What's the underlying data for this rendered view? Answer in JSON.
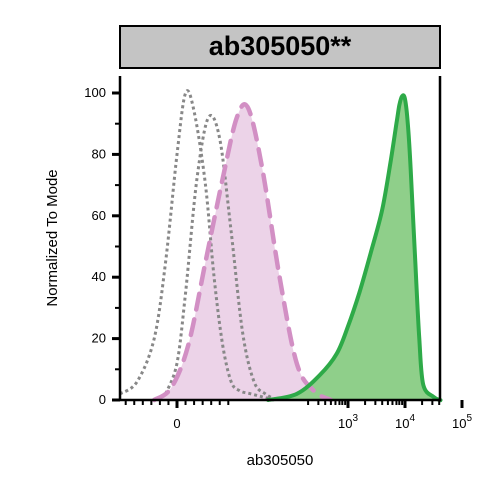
{
  "chart_data": {
    "type": "area",
    "title": "ab305050**",
    "xlabel": "ab305050",
    "ylabel": "Normalized To Mode",
    "ylim": [
      0,
      100
    ],
    "yticks": [
      0,
      20,
      40,
      60,
      80,
      100
    ],
    "xscale": "biexponential",
    "xticks": [
      {
        "label": "0",
        "exp": ""
      },
      {
        "label": "10",
        "exp": "3"
      },
      {
        "label": "10",
        "exp": "4"
      },
      {
        "label": "10",
        "exp": "5"
      }
    ],
    "grid": false,
    "legend": "none",
    "series": [
      {
        "style": "dotted-line",
        "color": "#888888",
        "fill": "none",
        "x": [
          -1.0,
          -0.7,
          -0.4,
          -0.2,
          0.0,
          0.15,
          0.3,
          0.5,
          0.65,
          0.8,
          0.95,
          1.1,
          1.3,
          1.5,
          1.7
        ],
        "y": [
          2,
          6,
          20,
          45,
          80,
          100,
          94,
          70,
          40,
          18,
          6,
          3,
          2,
          1,
          0
        ]
      },
      {
        "style": "dotted-line",
        "color": "#888888",
        "fill": "none",
        "x": [
          -0.2,
          0.0,
          0.15,
          0.35,
          0.55,
          0.75,
          0.95,
          1.15,
          1.35,
          1.55,
          1.75
        ],
        "y": [
          2,
          12,
          35,
          72,
          92,
          85,
          55,
          22,
          6,
          2,
          0
        ]
      },
      {
        "style": "dashed-area",
        "color": "#d28fc4",
        "fill": "#ecd3e8",
        "x": [
          -0.4,
          -0.1,
          0.2,
          0.5,
          0.8,
          1.05,
          1.25,
          1.5,
          1.8,
          2.1,
          2.4,
          2.7
        ],
        "y": [
          0,
          4,
          18,
          45,
          72,
          92,
          95,
          75,
          40,
          12,
          3,
          0
        ]
      },
      {
        "style": "solid-area",
        "color": "#2eaa48",
        "fill": "#8fcf8a",
        "x": [
          1.6,
          2.1,
          2.5,
          2.8,
          3.0,
          3.2,
          3.4,
          3.6,
          3.75,
          3.85,
          3.9,
          3.95,
          4.0,
          4.05,
          4.1,
          4.18,
          4.25,
          4.32,
          4.5,
          5.0,
          5.3
        ],
        "y": [
          0,
          2,
          8,
          15,
          24,
          35,
          48,
          62,
          78,
          90,
          96,
          99,
          98,
          90,
          75,
          45,
          20,
          5,
          1,
          0,
          0
        ]
      }
    ]
  }
}
